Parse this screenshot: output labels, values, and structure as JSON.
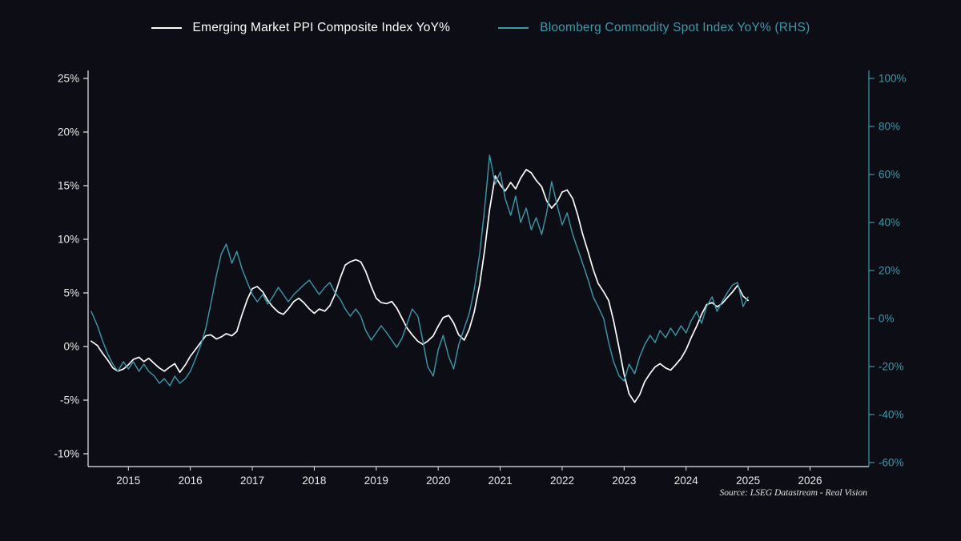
{
  "page": {
    "background": "#0d0d15"
  },
  "source": "Source: LSEG Datastream - Real Vision",
  "chart_data": {
    "type": "line",
    "title": "",
    "xlabel": "",
    "ylabel_left": "",
    "ylabel_right": "",
    "grid": false,
    "legend_position": "top-center",
    "x_axis": {
      "range": [
        2014.35,
        2026.95
      ],
      "tick_values": [
        2015,
        2016,
        2017,
        2018,
        2019,
        2020,
        2021,
        2022,
        2023,
        2024,
        2025,
        2026
      ],
      "tick_labels": [
        "2015",
        "2016",
        "2017",
        "2018",
        "2019",
        "2020",
        "2021",
        "2022",
        "2023",
        "2024",
        "2025",
        "2026"
      ],
      "color": "#e8e8e8"
    },
    "left_axis": {
      "range": [
        -10,
        25
      ],
      "tick_values": [
        25,
        20,
        15,
        10,
        5,
        0,
        -5,
        -10
      ],
      "tick_labels": [
        "25%",
        "20%",
        "15%",
        "10%",
        "5%",
        "0%",
        "-5%",
        "-10%"
      ],
      "color": "#e8e8e8"
    },
    "right_axis": {
      "range": [
        -60,
        100
      ],
      "tick_values": [
        100,
        80,
        60,
        40,
        20,
        0,
        -20,
        -40,
        -60
      ],
      "tick_labels": [
        "100%",
        "80%",
        "60%",
        "40%",
        "20%",
        "0%",
        "-20%",
        "-40%",
        "-60%"
      ],
      "color": "#3a9aab"
    },
    "series": [
      {
        "name": "Emerging Market PPI Composite Index YoY%",
        "axis": "left",
        "color": "#ffffff",
        "points": [
          [
            2014.4,
            0.5
          ],
          [
            2014.5,
            0.1
          ],
          [
            2014.58,
            -0.6
          ],
          [
            2014.67,
            -1.3
          ],
          [
            2014.75,
            -2
          ],
          [
            2014.83,
            -2.3
          ],
          [
            2014.92,
            -2.1
          ],
          [
            2015,
            -1.7
          ],
          [
            2015.08,
            -1.2
          ],
          [
            2015.17,
            -1
          ],
          [
            2015.25,
            -1.4
          ],
          [
            2015.33,
            -1.1
          ],
          [
            2015.42,
            -1.6
          ],
          [
            2015.5,
            -2
          ],
          [
            2015.58,
            -2.3
          ],
          [
            2015.67,
            -1.9
          ],
          [
            2015.75,
            -1.6
          ],
          [
            2015.83,
            -2.4
          ],
          [
            2015.92,
            -1.7
          ],
          [
            2016,
            -0.9
          ],
          [
            2016.08,
            -0.3
          ],
          [
            2016.17,
            0.4
          ],
          [
            2016.25,
            1
          ],
          [
            2016.33,
            1.1
          ],
          [
            2016.42,
            0.7
          ],
          [
            2016.5,
            0.9
          ],
          [
            2016.58,
            1.2
          ],
          [
            2016.67,
            1
          ],
          [
            2016.75,
            1.4
          ],
          [
            2016.83,
            2.9
          ],
          [
            2016.92,
            4.4
          ],
          [
            2017,
            5.4
          ],
          [
            2017.08,
            5.6
          ],
          [
            2017.17,
            5.1
          ],
          [
            2017.25,
            4.3
          ],
          [
            2017.33,
            3.7
          ],
          [
            2017.42,
            3.2
          ],
          [
            2017.5,
            3
          ],
          [
            2017.58,
            3.5
          ],
          [
            2017.67,
            4.2
          ],
          [
            2017.75,
            4.5
          ],
          [
            2017.83,
            4.1
          ],
          [
            2017.92,
            3.5
          ],
          [
            2018,
            3.1
          ],
          [
            2018.08,
            3.5
          ],
          [
            2018.17,
            3.3
          ],
          [
            2018.25,
            3.8
          ],
          [
            2018.33,
            4.8
          ],
          [
            2018.42,
            6.4
          ],
          [
            2018.5,
            7.6
          ],
          [
            2018.58,
            7.9
          ],
          [
            2018.67,
            8.1
          ],
          [
            2018.75,
            7.9
          ],
          [
            2018.83,
            7
          ],
          [
            2018.92,
            5.6
          ],
          [
            2019,
            4.5
          ],
          [
            2019.08,
            4.1
          ],
          [
            2019.17,
            4
          ],
          [
            2019.25,
            4.2
          ],
          [
            2019.33,
            3.6
          ],
          [
            2019.42,
            2.6
          ],
          [
            2019.5,
            1.7
          ],
          [
            2019.58,
            1.1
          ],
          [
            2019.67,
            0.5
          ],
          [
            2019.75,
            0.2
          ],
          [
            2019.83,
            0.5
          ],
          [
            2019.92,
            1
          ],
          [
            2020,
            1.9
          ],
          [
            2020.08,
            2.7
          ],
          [
            2020.17,
            2.9
          ],
          [
            2020.25,
            2.2
          ],
          [
            2020.33,
            1.1
          ],
          [
            2020.42,
            0.6
          ],
          [
            2020.5,
            1.6
          ],
          [
            2020.58,
            3.2
          ],
          [
            2020.67,
            5.8
          ],
          [
            2020.75,
            9
          ],
          [
            2020.83,
            12.8
          ],
          [
            2020.92,
            15.9
          ],
          [
            2021,
            15.1
          ],
          [
            2021.08,
            14.5
          ],
          [
            2021.17,
            15.3
          ],
          [
            2021.25,
            14.7
          ],
          [
            2021.33,
            15.7
          ],
          [
            2021.42,
            16.5
          ],
          [
            2021.5,
            16.2
          ],
          [
            2021.58,
            15.5
          ],
          [
            2021.67,
            14.9
          ],
          [
            2021.75,
            13.6
          ],
          [
            2021.83,
            12.9
          ],
          [
            2021.92,
            13.5
          ],
          [
            2022,
            14.4
          ],
          [
            2022.08,
            14.6
          ],
          [
            2022.17,
            13.8
          ],
          [
            2022.25,
            12.3
          ],
          [
            2022.33,
            10.5
          ],
          [
            2022.42,
            8.8
          ],
          [
            2022.5,
            7.2
          ],
          [
            2022.58,
            5.9
          ],
          [
            2022.67,
            5.1
          ],
          [
            2022.75,
            4.3
          ],
          [
            2022.83,
            2.4
          ],
          [
            2022.92,
            -0.2
          ],
          [
            2023,
            -2.6
          ],
          [
            2023.08,
            -4.4
          ],
          [
            2023.17,
            -5.2
          ],
          [
            2023.25,
            -4.5
          ],
          [
            2023.33,
            -3.3
          ],
          [
            2023.42,
            -2.5
          ],
          [
            2023.5,
            -1.9
          ],
          [
            2023.58,
            -1.6
          ],
          [
            2023.67,
            -2
          ],
          [
            2023.75,
            -2.2
          ],
          [
            2023.83,
            -1.7
          ],
          [
            2023.92,
            -1.1
          ],
          [
            2024,
            -0.3
          ],
          [
            2024.08,
            0.8
          ],
          [
            2024.17,
            1.9
          ],
          [
            2024.25,
            3
          ],
          [
            2024.33,
            3.9
          ],
          [
            2024.42,
            4.1
          ],
          [
            2024.5,
            3.7
          ],
          [
            2024.58,
            4
          ],
          [
            2024.67,
            4.6
          ],
          [
            2024.75,
            5.1
          ],
          [
            2024.83,
            5.7
          ],
          [
            2024.92,
            4.7
          ],
          [
            2025,
            4.3
          ]
        ]
      },
      {
        "name": "Bloomberg Commodity Spot Index YoY% (RHS)",
        "axis": "right",
        "color": "#3a9aab",
        "points": [
          [
            2014.4,
            3
          ],
          [
            2014.5,
            -3
          ],
          [
            2014.58,
            -9
          ],
          [
            2014.67,
            -15
          ],
          [
            2014.75,
            -19
          ],
          [
            2014.83,
            -22
          ],
          [
            2014.92,
            -18
          ],
          [
            2015,
            -21
          ],
          [
            2015.08,
            -18
          ],
          [
            2015.17,
            -22
          ],
          [
            2015.25,
            -19
          ],
          [
            2015.33,
            -22
          ],
          [
            2015.42,
            -24
          ],
          [
            2015.5,
            -27
          ],
          [
            2015.58,
            -25
          ],
          [
            2015.67,
            -28
          ],
          [
            2015.75,
            -24
          ],
          [
            2015.83,
            -27
          ],
          [
            2015.92,
            -25
          ],
          [
            2016,
            -22
          ],
          [
            2016.08,
            -17
          ],
          [
            2016.17,
            -11
          ],
          [
            2016.25,
            -4
          ],
          [
            2016.33,
            6
          ],
          [
            2016.42,
            18
          ],
          [
            2016.5,
            27
          ],
          [
            2016.58,
            31
          ],
          [
            2016.67,
            23
          ],
          [
            2016.75,
            28
          ],
          [
            2016.83,
            21
          ],
          [
            2016.92,
            15
          ],
          [
            2017,
            10
          ],
          [
            2017.08,
            7
          ],
          [
            2017.17,
            10
          ],
          [
            2017.25,
            6
          ],
          [
            2017.33,
            9
          ],
          [
            2017.42,
            13
          ],
          [
            2017.5,
            10
          ],
          [
            2017.58,
            7
          ],
          [
            2017.67,
            10
          ],
          [
            2017.75,
            12
          ],
          [
            2017.83,
            14
          ],
          [
            2017.92,
            16
          ],
          [
            2018,
            13
          ],
          [
            2018.08,
            10
          ],
          [
            2018.17,
            13
          ],
          [
            2018.25,
            15
          ],
          [
            2018.33,
            11
          ],
          [
            2018.42,
            8
          ],
          [
            2018.5,
            4
          ],
          [
            2018.58,
            1
          ],
          [
            2018.67,
            4
          ],
          [
            2018.75,
            1
          ],
          [
            2018.83,
            -5
          ],
          [
            2018.92,
            -9
          ],
          [
            2019,
            -6
          ],
          [
            2019.08,
            -3
          ],
          [
            2019.17,
            -6
          ],
          [
            2019.25,
            -9
          ],
          [
            2019.33,
            -12
          ],
          [
            2019.42,
            -8
          ],
          [
            2019.5,
            -2
          ],
          [
            2019.58,
            4
          ],
          [
            2019.67,
            1
          ],
          [
            2019.75,
            -9
          ],
          [
            2019.83,
            -20
          ],
          [
            2019.92,
            -24
          ],
          [
            2020,
            -13
          ],
          [
            2020.08,
            -7
          ],
          [
            2020.17,
            -16
          ],
          [
            2020.25,
            -21
          ],
          [
            2020.33,
            -11
          ],
          [
            2020.42,
            -4
          ],
          [
            2020.5,
            2
          ],
          [
            2020.58,
            12
          ],
          [
            2020.67,
            27
          ],
          [
            2020.75,
            46
          ],
          [
            2020.83,
            68
          ],
          [
            2020.92,
            56
          ],
          [
            2021,
            61
          ],
          [
            2021.08,
            50
          ],
          [
            2021.17,
            43
          ],
          [
            2021.25,
            51
          ],
          [
            2021.33,
            40
          ],
          [
            2021.42,
            46
          ],
          [
            2021.5,
            37
          ],
          [
            2021.58,
            42
          ],
          [
            2021.67,
            35
          ],
          [
            2021.75,
            44
          ],
          [
            2021.83,
            57
          ],
          [
            2021.92,
            47
          ],
          [
            2022,
            39
          ],
          [
            2022.08,
            44
          ],
          [
            2022.17,
            35
          ],
          [
            2022.25,
            29
          ],
          [
            2022.33,
            23
          ],
          [
            2022.42,
            16
          ],
          [
            2022.5,
            9
          ],
          [
            2022.58,
            5
          ],
          [
            2022.67,
            0
          ],
          [
            2022.75,
            -10
          ],
          [
            2022.83,
            -18
          ],
          [
            2022.92,
            -24
          ],
          [
            2023,
            -26
          ],
          [
            2023.08,
            -19
          ],
          [
            2023.17,
            -23
          ],
          [
            2023.25,
            -16
          ],
          [
            2023.33,
            -11
          ],
          [
            2023.42,
            -7
          ],
          [
            2023.5,
            -10
          ],
          [
            2023.58,
            -5
          ],
          [
            2023.67,
            -8
          ],
          [
            2023.75,
            -4
          ],
          [
            2023.83,
            -7
          ],
          [
            2023.92,
            -3
          ],
          [
            2024,
            -6
          ],
          [
            2024.08,
            -1
          ],
          [
            2024.17,
            3
          ],
          [
            2024.25,
            -2
          ],
          [
            2024.33,
            5
          ],
          [
            2024.42,
            9
          ],
          [
            2024.5,
            3
          ],
          [
            2024.58,
            7
          ],
          [
            2024.67,
            11
          ],
          [
            2024.75,
            14
          ],
          [
            2024.83,
            15
          ],
          [
            2024.92,
            5
          ],
          [
            2025,
            9
          ]
        ]
      }
    ]
  }
}
